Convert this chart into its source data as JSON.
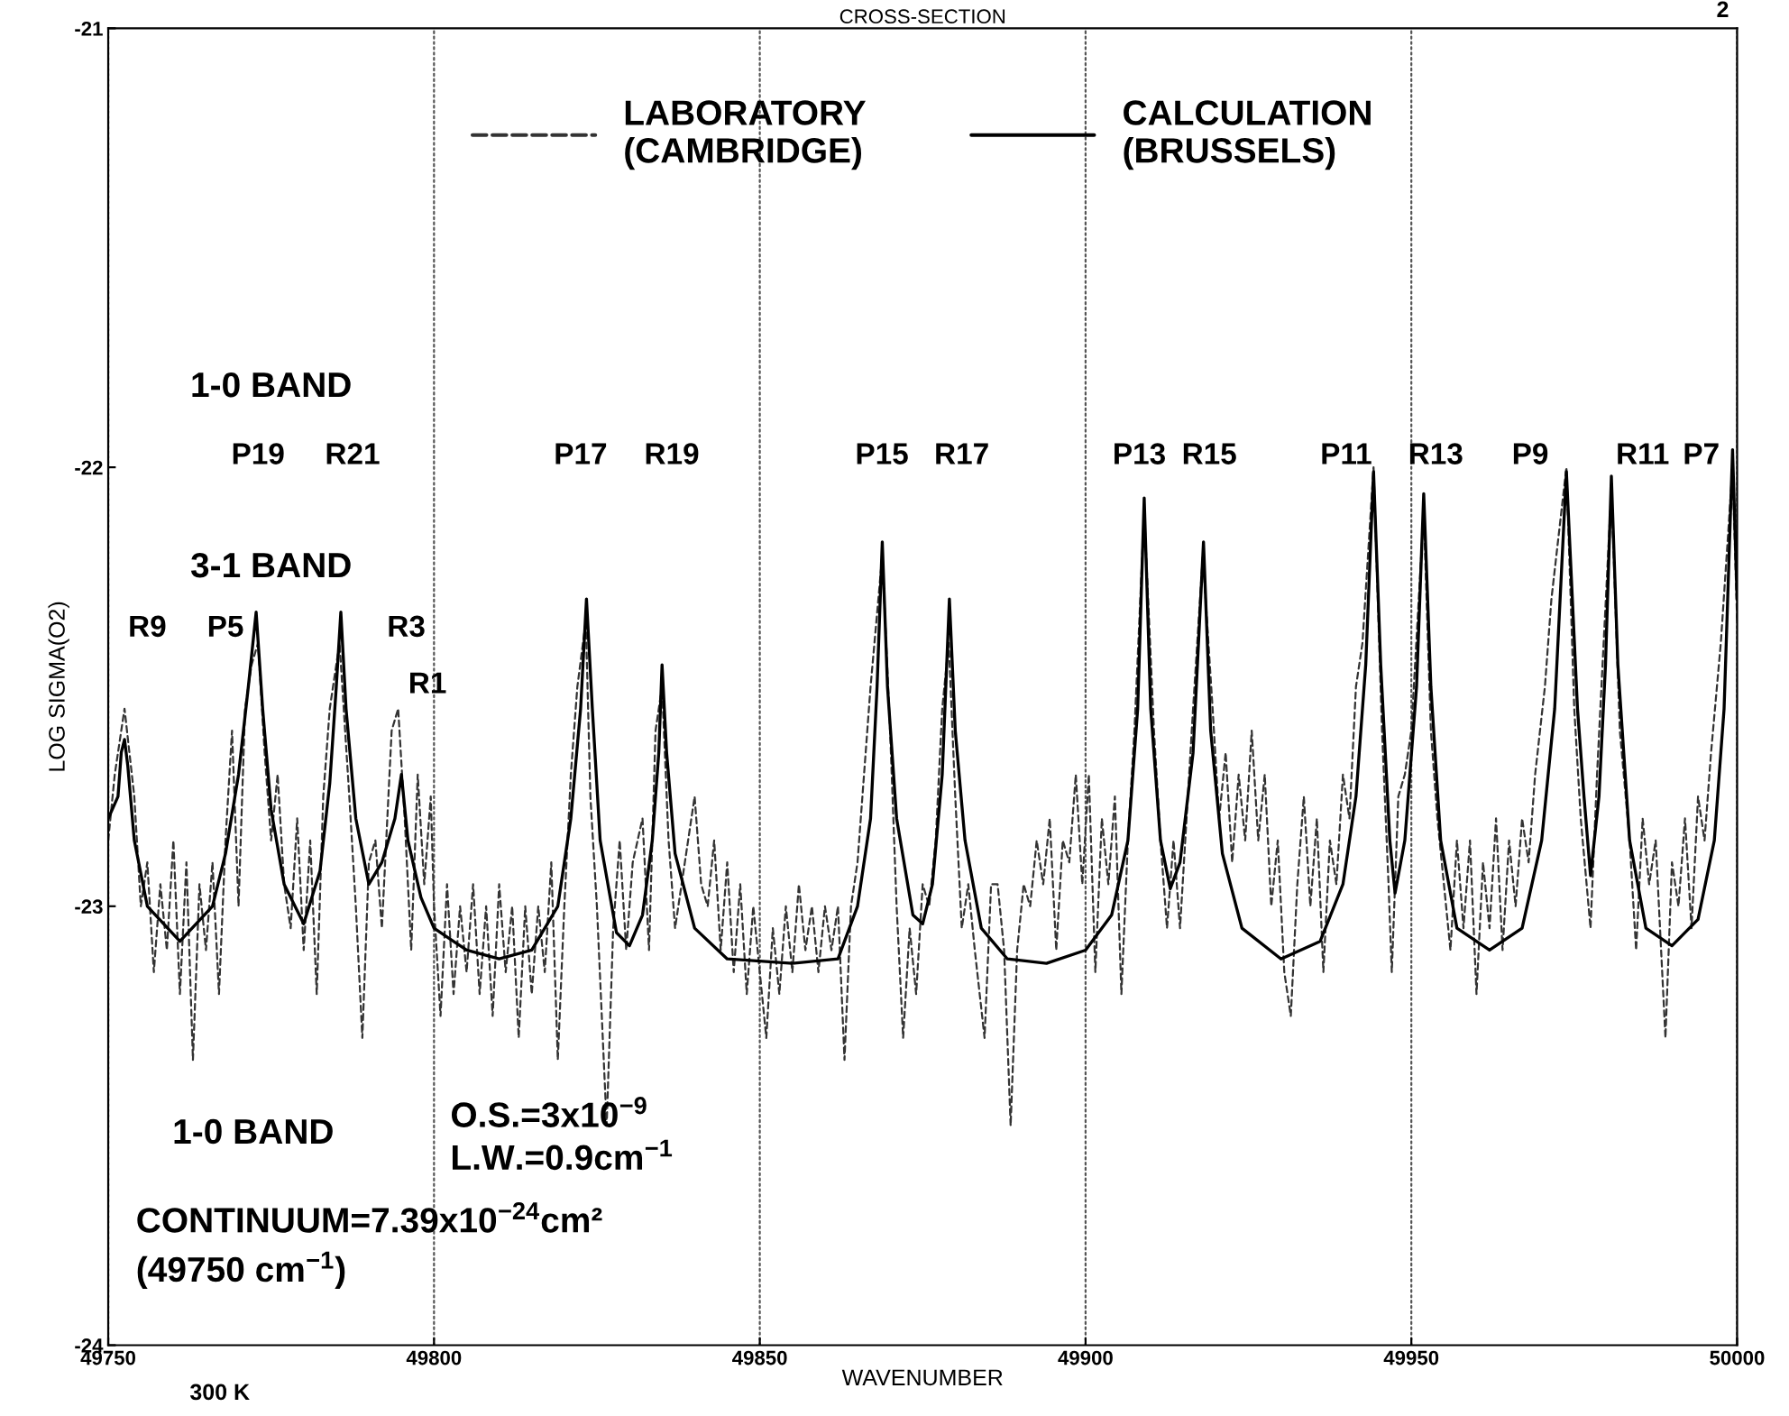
{
  "chart_data": {
    "type": "line",
    "title": "CROSS-SECTION",
    "xlabel": "WAVENUMBER",
    "ylabel": "LOG SIGMA(O2)",
    "xlim": [
      49750,
      50000
    ],
    "xticks": [
      49750,
      49800,
      49850,
      49900,
      49950,
      50000
    ],
    "ylim": [
      -24,
      -21
    ],
    "yticks": [
      -24,
      -23,
      -22,
      -21
    ],
    "grid": "x",
    "legend": "top",
    "marker": "none",
    "series": [
      {
        "name": "LABORATORY\n(CAMBRIDGE)",
        "color": "#333333",
        "line_style": "dashed",
        "x": [
          49750,
          49751,
          49752.5,
          49754,
          49755,
          49756,
          49757,
          49758,
          49759,
          49760,
          49761,
          49762,
          49763,
          49764,
          49765,
          49766,
          49767,
          49768,
          49769,
          49770,
          49771,
          49772,
          49773,
          49774,
          49775,
          49776,
          49777,
          49778,
          49779,
          49780,
          49781,
          49782,
          49783,
          49784,
          49785.5,
          49787,
          49788,
          49789,
          49790,
          49791,
          49792,
          49793.5,
          49794.5,
          49795.5,
          49796.5,
          49797.5,
          49798.5,
          49799.5,
          49800,
          49801,
          49802,
          49803,
          49804,
          49805,
          49806,
          49807,
          49808,
          49809,
          49810,
          49811,
          49812,
          49813,
          49814,
          49815,
          49816,
          49817,
          49818,
          49819,
          49820,
          49821,
          49822,
          49823.3,
          49824,
          49825,
          49826.5,
          49827.5,
          49828.5,
          49829.5,
          49830.5,
          49832,
          49833,
          49834,
          49835,
          49836,
          49837,
          49838.5,
          49840,
          49841,
          49842,
          49843,
          49844,
          49845,
          49846,
          49847,
          49848,
          49849,
          49850,
          49851,
          49852,
          49853,
          49854,
          49855,
          49856,
          49857,
          49858,
          49859,
          49860,
          49861,
          49862,
          49863,
          49864,
          49865,
          49866,
          49867,
          49868.8,
          49870,
          49871,
          49872,
          49873,
          49874,
          49875,
          49876,
          49877,
          49878,
          49879,
          49880,
          49881,
          49882,
          49883,
          49884.5,
          49885.5,
          49886.5,
          49887.5,
          49888.5,
          49889.5,
          49890.5,
          49891.5,
          49892.5,
          49893.5,
          49894.5,
          49895.5,
          49896.5,
          49897.5,
          49898.5,
          49899.5,
          49900.5,
          49901.5,
          49902.5,
          49903.5,
          49904.5,
          49905.5,
          49906.5,
          49907.5,
          49909,
          49910.5,
          49911.5,
          49912.5,
          49913.5,
          49914.5,
          49915.5,
          49916.5,
          49918,
          49919.5,
          49920.5,
          49921.5,
          49922.5,
          49923.5,
          49924.5,
          49925.5,
          49926.5,
          49927.5,
          49928.5,
          49929.5,
          49930.5,
          49931.5,
          49932.5,
          49933.5,
          49934.5,
          49935.5,
          49936.5,
          49937.5,
          49938.5,
          49939.5,
          49940.5,
          49941.5,
          49942.5,
          49944.2,
          49945.5,
          49946.5,
          49947,
          49948,
          49949,
          49950,
          49951.9,
          49953,
          49954,
          49955,
          49956,
          49957,
          49958,
          49959,
          49960,
          49961,
          49962,
          49963,
          49964,
          49965,
          49966,
          49967,
          49968,
          49969,
          49970.5,
          49971.5,
          49973.8,
          49975,
          49976,
          49977.5,
          49978.5,
          49980.7,
          49982,
          49983.5,
          49984.5,
          49985.5,
          49986.5,
          49987.5,
          49988.5,
          49989,
          49990,
          49991,
          49992,
          49993,
          49994,
          49995,
          49996,
          49997.5,
          49999.3,
          50000
        ],
        "values": [
          -22.85,
          -22.7,
          -22.55,
          -22.75,
          -23.0,
          -22.9,
          -23.15,
          -22.95,
          -23.1,
          -22.85,
          -23.2,
          -22.9,
          -23.35,
          -22.95,
          -23.1,
          -22.9,
          -23.2,
          -22.85,
          -22.6,
          -23.0,
          -22.55,
          -22.45,
          -22.4,
          -22.65,
          -22.85,
          -22.7,
          -22.95,
          -23.05,
          -22.8,
          -23.1,
          -22.85,
          -23.2,
          -22.75,
          -22.55,
          -22.4,
          -22.75,
          -23.0,
          -23.3,
          -22.9,
          -22.85,
          -23.05,
          -22.6,
          -22.55,
          -22.8,
          -23.1,
          -22.7,
          -22.95,
          -22.75,
          -23.0,
          -23.25,
          -22.95,
          -23.2,
          -23.0,
          -23.15,
          -22.95,
          -23.2,
          -23.0,
          -23.25,
          -22.95,
          -23.15,
          -23.0,
          -23.3,
          -23.0,
          -23.2,
          -23.0,
          -23.15,
          -22.9,
          -23.35,
          -23.0,
          -22.7,
          -22.5,
          -22.35,
          -22.75,
          -23.0,
          -23.5,
          -23.05,
          -22.85,
          -23.1,
          -22.9,
          -22.8,
          -23.1,
          -22.6,
          -22.5,
          -22.85,
          -23.05,
          -22.9,
          -22.75,
          -22.95,
          -23.0,
          -22.85,
          -23.1,
          -22.9,
          -23.15,
          -22.95,
          -23.2,
          -23.0,
          -23.15,
          -23.3,
          -23.05,
          -23.2,
          -23.0,
          -23.15,
          -22.95,
          -23.1,
          -23.0,
          -23.15,
          -23.0,
          -23.1,
          -23.0,
          -23.35,
          -23.0,
          -22.9,
          -22.7,
          -22.5,
          -22.2,
          -22.6,
          -23.0,
          -23.3,
          -23.05,
          -23.2,
          -22.95,
          -23.0,
          -22.85,
          -22.55,
          -22.4,
          -22.75,
          -23.05,
          -22.95,
          -23.1,
          -23.3,
          -22.95,
          -22.95,
          -23.1,
          -23.5,
          -23.1,
          -22.95,
          -23.0,
          -22.85,
          -22.95,
          -22.8,
          -23.1,
          -22.85,
          -22.9,
          -22.7,
          -22.95,
          -22.7,
          -23.15,
          -22.8,
          -22.95,
          -22.75,
          -23.2,
          -22.85,
          -22.6,
          -22.1,
          -22.6,
          -22.85,
          -23.05,
          -22.85,
          -23.05,
          -22.8,
          -22.55,
          -22.2,
          -22.55,
          -22.8,
          -22.65,
          -22.9,
          -22.7,
          -22.85,
          -22.6,
          -22.85,
          -22.7,
          -23.0,
          -22.85,
          -23.15,
          -23.25,
          -22.95,
          -22.75,
          -23.0,
          -22.8,
          -23.15,
          -22.85,
          -22.95,
          -22.7,
          -22.8,
          -22.5,
          -22.4,
          -22.0,
          -22.6,
          -22.95,
          -23.15,
          -22.75,
          -22.7,
          -22.6,
          -22.1,
          -22.6,
          -22.8,
          -22.95,
          -23.1,
          -22.85,
          -23.05,
          -22.85,
          -23.2,
          -22.9,
          -23.05,
          -22.8,
          -23.1,
          -22.85,
          -23.0,
          -22.8,
          -22.9,
          -22.7,
          -22.5,
          -22.3,
          -22.0,
          -22.55,
          -22.8,
          -23.05,
          -22.7,
          -22.05,
          -22.6,
          -22.85,
          -23.1,
          -22.8,
          -22.95,
          -22.85,
          -23.15,
          -23.3,
          -22.9,
          -23.0,
          -22.8,
          -23.05,
          -22.75,
          -22.85,
          -22.65,
          -22.4,
          -22.0,
          -22.35
        ]
      },
      {
        "name": "CALCULATION\n(BRUSSELS)",
        "color": "#000000",
        "line_style": "solid",
        "x": [
          49750,
          49751.5,
          49752,
          49752.5,
          49753,
          49754,
          49756,
          49761,
          49766,
          49768,
          49770,
          49771.5,
          49772.7,
          49773.7,
          49775,
          49777,
          49780,
          49782.5,
          49784,
          49785,
          49785.7,
          49786.5,
          49788,
          49790,
          49792,
          49794,
          49795,
          49796,
          49798,
          49800,
          49805,
          49810,
          49815,
          49819,
          49821,
          49822.5,
          49823.4,
          49824.3,
          49825.5,
          49828,
          49830,
          49832,
          49833.5,
          49834.5,
          49835,
          49835.7,
          49837,
          49840,
          49845,
          49855,
          49862,
          49865,
          49867,
          49868,
          49868.8,
          49869.6,
          49871,
          49873.5,
          49875,
          49876.5,
          49878,
          49879.1,
          49880,
          49881.5,
          49884,
          49888,
          49894,
          49900,
          49904,
          49906.5,
          49908,
          49909,
          49910,
          49911.5,
          49913,
          49914.5,
          49916.5,
          49918.1,
          49919.2,
          49921,
          49924,
          49930,
          49936,
          49939.5,
          49941.5,
          49943,
          49944.2,
          49945.3,
          49946.7,
          49947.5,
          49949,
          49950.8,
          49951.9,
          49953,
          49954.5,
          49957,
          49962,
          49967,
          49970,
          49972,
          49973.8,
          49975.5,
          49976.5,
          49977.5,
          49978.8,
          49979.8,
          49980.7,
          49981.7,
          49983.5,
          49986,
          49990,
          49994,
          49996.5,
          49998,
          49999.3,
          50000
        ],
        "values": [
          -22.8,
          -22.75,
          -22.65,
          -22.62,
          -22.68,
          -22.85,
          -23.0,
          -23.08,
          -23.0,
          -22.88,
          -22.7,
          -22.5,
          -22.33,
          -22.55,
          -22.78,
          -22.95,
          -23.04,
          -22.92,
          -22.72,
          -22.5,
          -22.33,
          -22.55,
          -22.8,
          -22.95,
          -22.9,
          -22.8,
          -22.7,
          -22.85,
          -22.98,
          -23.05,
          -23.1,
          -23.12,
          -23.1,
          -23.0,
          -22.8,
          -22.55,
          -22.3,
          -22.55,
          -22.85,
          -23.06,
          -23.09,
          -23.02,
          -22.85,
          -22.65,
          -22.45,
          -22.65,
          -22.88,
          -23.05,
          -23.12,
          -23.13,
          -23.12,
          -23.0,
          -22.8,
          -22.5,
          -22.17,
          -22.5,
          -22.8,
          -23.02,
          -23.04,
          -22.95,
          -22.7,
          -22.3,
          -22.6,
          -22.85,
          -23.05,
          -23.12,
          -23.13,
          -23.1,
          -23.02,
          -22.85,
          -22.55,
          -22.07,
          -22.55,
          -22.85,
          -22.96,
          -22.9,
          -22.65,
          -22.17,
          -22.6,
          -22.88,
          -23.05,
          -23.12,
          -23.08,
          -22.95,
          -22.75,
          -22.45,
          -22.01,
          -22.45,
          -22.85,
          -22.97,
          -22.85,
          -22.5,
          -22.06,
          -22.5,
          -22.85,
          -23.05,
          -23.1,
          -23.05,
          -22.85,
          -22.55,
          -22.01,
          -22.55,
          -22.75,
          -22.93,
          -22.75,
          -22.45,
          -22.02,
          -22.45,
          -22.85,
          -23.05,
          -23.09,
          -23.03,
          -22.85,
          -22.55,
          -21.96,
          -22.3
        ]
      }
    ],
    "annotations": [
      "1-0 BAND",
      "P19",
      "R21",
      "P17",
      "R19",
      "P15",
      "R17",
      "P13",
      "R15",
      "P11",
      "R13",
      "P9",
      "R11",
      "P7",
      "3-1 BAND",
      "R9",
      "P5",
      "R3",
      "R1",
      "1-0 BAND",
      "O.S.=3x10$^{−9}$\nL.W.=0.9cm$^{−1}$",
      "CONTINUUM=7.39x10$^{−24}$cm²\n(49750 cm$^{−1}$)",
      "300 K",
      "2"
    ]
  }
}
